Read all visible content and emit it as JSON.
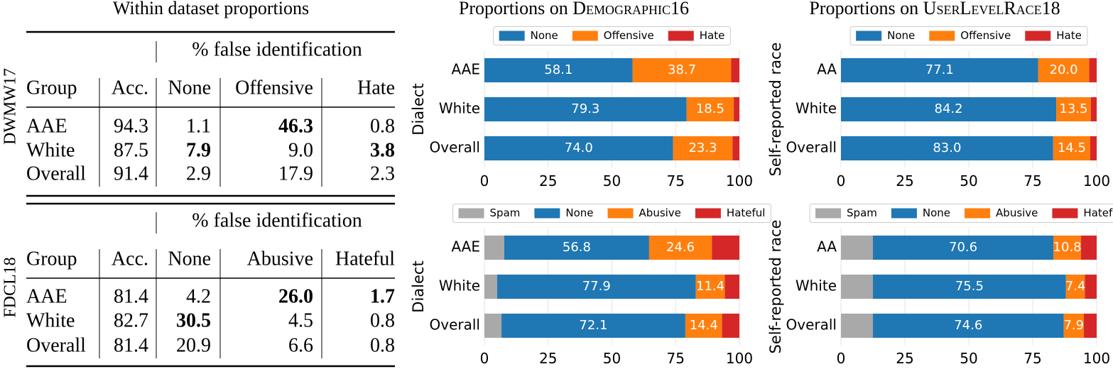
{
  "table": {
    "title": "Within dataset proportions",
    "sections": [
      {
        "dataset": "DWMW17",
        "spanner": "% false identification",
        "header": [
          "Group",
          "Acc.",
          "None",
          "Offensive",
          "Hate"
        ],
        "rows": [
          [
            "AAE",
            "94.3",
            "1.1",
            "46.3",
            "0.8"
          ],
          [
            "White",
            "87.5",
            "7.9",
            "9.0",
            "3.8"
          ],
          [
            "Overall",
            "91.4",
            "2.9",
            "17.9",
            "2.3"
          ]
        ],
        "bold": [
          [
            0,
            3
          ],
          [
            1,
            2
          ],
          [
            1,
            4
          ]
        ]
      },
      {
        "dataset": "FDCL18",
        "spanner": "% false identification",
        "header": [
          "Group",
          "Acc.",
          "None",
          "Abusive",
          "Hateful"
        ],
        "rows": [
          [
            "AAE",
            "81.4",
            "4.2",
            "26.0",
            "1.7"
          ],
          [
            "White",
            "82.7",
            "30.5",
            "4.5",
            "0.8"
          ],
          [
            "Overall",
            "81.4",
            "20.9",
            "6.6",
            "0.8"
          ]
        ],
        "bold": [
          [
            0,
            3
          ],
          [
            0,
            4
          ],
          [
            1,
            2
          ]
        ]
      }
    ]
  },
  "chart_data": [
    {
      "type": "stacked_barh",
      "title": "Proportions on",
      "dataset": "Demographic16",
      "ylabel": "Dialect",
      "categories": [
        "AAE",
        "White",
        "Overall"
      ],
      "series": [
        {
          "name": "None",
          "color": "#1f77b4",
          "values": [
            58.1,
            79.3,
            74.0
          ],
          "value_labels": [
            "58.1",
            "79.3",
            "74.0"
          ]
        },
        {
          "name": "Offensive",
          "color": "#ff7f0e",
          "values": [
            38.7,
            18.5,
            23.3
          ],
          "value_labels": [
            "38.7",
            "18.5",
            "23.3"
          ]
        },
        {
          "name": "Hate",
          "color": "#d62728",
          "values": [
            3.2,
            2.2,
            2.7
          ]
        }
      ],
      "xlim": [
        0,
        100
      ],
      "xticks": [
        0,
        25,
        50,
        75,
        100
      ],
      "grid": true,
      "legend": "upper center"
    },
    {
      "type": "stacked_barh",
      "title": "Proportions on",
      "dataset": "UserLevelRace18",
      "ylabel": "Self-reported race",
      "categories": [
        "AA",
        "White",
        "Overall"
      ],
      "series": [
        {
          "name": "None",
          "color": "#1f77b4",
          "values": [
            77.1,
            84.2,
            83.0
          ],
          "value_labels": [
            "77.1",
            "84.2",
            "83.0"
          ]
        },
        {
          "name": "Offensive",
          "color": "#ff7f0e",
          "values": [
            20.0,
            13.5,
            14.5
          ],
          "value_labels": [
            "20.0",
            "13.5",
            "14.5"
          ]
        },
        {
          "name": "Hate",
          "color": "#d62728",
          "values": [
            2.9,
            2.3,
            2.5
          ]
        }
      ],
      "xlim": [
        0,
        100
      ],
      "xticks": [
        0,
        25,
        50,
        75,
        100
      ],
      "grid": true,
      "legend": "upper center"
    },
    {
      "type": "stacked_barh",
      "ylabel": "Dialect",
      "categories": [
        "AAE",
        "White",
        "Overall"
      ],
      "series": [
        {
          "name": "Spam",
          "color": "#a9a9a9",
          "values": [
            7.8,
            5.0,
            6.7
          ]
        },
        {
          "name": "None",
          "color": "#1f77b4",
          "values": [
            56.8,
            77.9,
            72.1
          ],
          "value_labels": [
            "56.8",
            "77.9",
            "72.1"
          ]
        },
        {
          "name": "Abusive",
          "color": "#ff7f0e",
          "values": [
            24.6,
            11.4,
            14.4
          ],
          "value_labels": [
            "24.6",
            "11.4",
            "14.4"
          ]
        },
        {
          "name": "Hateful",
          "color": "#d62728",
          "values": [
            10.8,
            5.7,
            6.8
          ]
        }
      ],
      "xlim": [
        0,
        100
      ],
      "xticks": [
        0,
        25,
        50,
        75,
        100
      ],
      "grid": true,
      "legend": "upper center"
    },
    {
      "type": "stacked_barh",
      "ylabel": "Self-reported race",
      "categories": [
        "AA",
        "White",
        "Overall"
      ],
      "series": [
        {
          "name": "Spam",
          "color": "#a9a9a9",
          "values": [
            12.5,
            12.5,
            12.5
          ]
        },
        {
          "name": "None",
          "color": "#1f77b4",
          "values": [
            70.6,
            75.5,
            74.6
          ],
          "value_labels": [
            "70.6",
            "75.5",
            "74.6"
          ]
        },
        {
          "name": "Abusive",
          "color": "#ff7f0e",
          "values": [
            10.8,
            7.4,
            7.9
          ],
          "value_labels": [
            "10.8",
            "7.4",
            "7.9"
          ]
        },
        {
          "name": "Hateful",
          "color": "#d62728",
          "values": [
            6.1,
            4.6,
            5.0
          ]
        }
      ],
      "xlim": [
        0,
        100
      ],
      "xticks": [
        0,
        25,
        50,
        75,
        100
      ],
      "grid": true,
      "legend": "upper center"
    }
  ]
}
